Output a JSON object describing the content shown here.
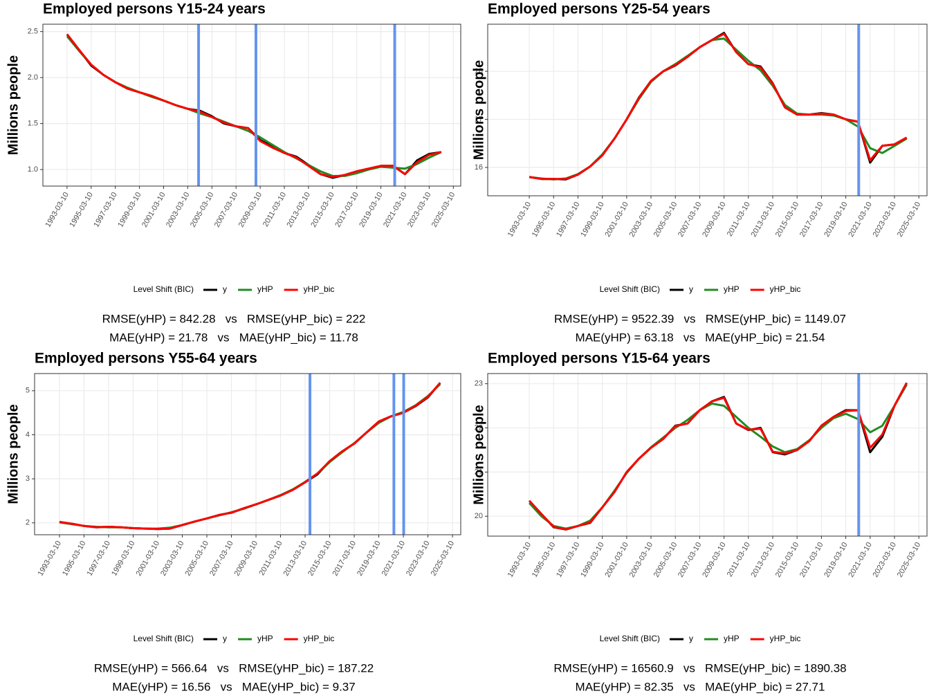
{
  "chart_data": [
    {
      "type": "line",
      "title": "Employed persons Y15-24 years",
      "y_label": "Millions people",
      "legend_title": "Level Shift (BIC)",
      "grid": true,
      "x": [
        "1993-03-10",
        "1994-03-10",
        "1995-03-10",
        "1996-03-10",
        "1997-03-10",
        "1998-03-10",
        "1999-03-10",
        "2000-03-10",
        "2001-03-10",
        "2002-03-10",
        "2003-03-10",
        "2004-03-10",
        "2005-03-10",
        "2006-03-10",
        "2007-03-10",
        "2008-03-10",
        "2009-03-10",
        "2010-03-10",
        "2011-03-10",
        "2012-03-10",
        "2013-03-10",
        "2014-03-10",
        "2015-03-10",
        "2016-03-10",
        "2017-03-10",
        "2018-03-10",
        "2019-03-10",
        "2020-03-10",
        "2021-03-10",
        "2022-03-10",
        "2023-03-10",
        "2024-03-10"
      ],
      "series": [
        {
          "name": "y",
          "color": "#000000",
          "values": [
            2.47,
            2.3,
            2.13,
            2.03,
            1.95,
            1.88,
            1.84,
            1.8,
            1.75,
            1.7,
            1.66,
            1.64,
            1.58,
            1.5,
            1.47,
            1.45,
            1.32,
            1.25,
            1.18,
            1.14,
            1.05,
            0.95,
            0.91,
            0.94,
            0.98,
            1.01,
            1.04,
            1.04,
            0.95,
            1.1,
            1.17,
            1.19
          ]
        },
        {
          "name": "yHP",
          "color": "#228b22",
          "values": [
            2.45,
            2.29,
            2.14,
            2.03,
            1.95,
            1.89,
            1.84,
            1.79,
            1.75,
            1.7,
            1.66,
            1.61,
            1.57,
            1.52,
            1.47,
            1.42,
            1.35,
            1.27,
            1.19,
            1.12,
            1.05,
            0.98,
            0.93,
            0.93,
            0.96,
            1.0,
            1.03,
            1.02,
            1.01,
            1.06,
            1.13,
            1.19
          ]
        },
        {
          "name": "yHP_bic",
          "color": "#ff0000",
          "values": [
            2.47,
            2.3,
            2.14,
            2.03,
            1.95,
            1.88,
            1.84,
            1.8,
            1.75,
            1.7,
            1.66,
            1.63,
            1.57,
            1.51,
            1.47,
            1.45,
            1.31,
            1.24,
            1.18,
            1.13,
            1.04,
            0.95,
            0.92,
            0.94,
            0.98,
            1.01,
            1.04,
            1.04,
            0.95,
            1.08,
            1.16,
            1.19
          ]
        }
      ],
      "level_shifts": [
        "2004-02-01",
        "2008-11-01",
        "2020-05-01"
      ],
      "shift_color": "#6495ed",
      "xlim": [
        "1991-03-10",
        "2025-10-20"
      ],
      "xticks": [
        "1993-03-10",
        "1995-03-10",
        "1997-03-10",
        "1999-03-10",
        "2001-03-10",
        "2003-03-10",
        "2005-03-10",
        "2007-03-10",
        "2009-03-10",
        "2011-03-10",
        "2013-03-10",
        "2015-03-10",
        "2017-03-10",
        "2019-03-10",
        "2021-03-10",
        "2023-03-10",
        "2025-03-10"
      ],
      "ylim": [
        0.82,
        2.58
      ],
      "yticks": [
        {
          "value": 1,
          "label": "1.0"
        },
        {
          "value": 1.5,
          "label": "1.5"
        },
        {
          "value": 2,
          "label": "2.0"
        },
        {
          "value": 2.5,
          "label": "2.5"
        }
      ],
      "annotations": [
        "RMSE(yHP) = 842.28   vs   RMSE(yHP_bic) = 222",
        "MAE(yHP) = 21.78   vs   MAE(yHP_bic) = 11.78"
      ]
    },
    {
      "type": "line",
      "title": "Employed persons Y25-54 years",
      "y_label": "Millions people",
      "legend_title": "Level Shift (BIC)",
      "grid": true,
      "x": [
        "1993-03-10",
        "1994-03-10",
        "1995-03-10",
        "1996-03-10",
        "1997-03-10",
        "1998-03-10",
        "1999-03-10",
        "2000-03-10",
        "2001-03-10",
        "2002-03-10",
        "2003-03-10",
        "2004-03-10",
        "2005-03-10",
        "2006-03-10",
        "2007-03-10",
        "2008-03-10",
        "2009-03-10",
        "2010-03-10",
        "2011-03-10",
        "2012-03-10",
        "2013-03-10",
        "2014-03-10",
        "2015-03-10",
        "2016-03-10",
        "2017-03-10",
        "2018-03-10",
        "2019-03-10",
        "2020-03-10",
        "2021-03-10",
        "2022-03-10",
        "2023-03-10",
        "2024-03-10"
      ],
      "series": [
        {
          "name": "y",
          "color": "#000000",
          "values": [
            15.8,
            15.76,
            15.76,
            15.75,
            15.85,
            16.02,
            16.25,
            16.6,
            17.0,
            17.45,
            17.8,
            18.0,
            18.12,
            18.3,
            18.5,
            18.65,
            18.8,
            18.4,
            18.15,
            18.1,
            17.75,
            17.25,
            17.1,
            17.1,
            17.13,
            17.1,
            17.0,
            16.95,
            16.1,
            16.45,
            16.48,
            16.62
          ]
        },
        {
          "name": "yHP",
          "color": "#228b22",
          "values": [
            15.8,
            15.77,
            15.75,
            15.77,
            15.86,
            16.02,
            16.27,
            16.6,
            17.0,
            17.42,
            17.78,
            18.0,
            18.15,
            18.32,
            18.5,
            18.65,
            18.68,
            18.45,
            18.22,
            18.02,
            17.7,
            17.3,
            17.12,
            17.1,
            17.1,
            17.08,
            17.0,
            16.85,
            16.4,
            16.3,
            16.45,
            16.6
          ]
        },
        {
          "name": "yHP_bic",
          "color": "#ff0000",
          "values": [
            15.8,
            15.76,
            15.76,
            15.76,
            15.85,
            16.02,
            16.25,
            16.6,
            17.0,
            17.44,
            17.8,
            18.0,
            18.13,
            18.3,
            18.5,
            18.65,
            18.78,
            18.4,
            18.15,
            18.08,
            17.74,
            17.25,
            17.1,
            17.1,
            17.12,
            17.1,
            17.0,
            16.95,
            16.15,
            16.45,
            16.48,
            16.62
          ]
        }
      ],
      "level_shifts": [
        "2020-04-01"
      ],
      "shift_color": "#6495ed",
      "xlim": [
        "1989-10-10",
        "2025-11-10"
      ],
      "xticks": [
        "1993-03-10",
        "1995-03-10",
        "1997-03-10",
        "1999-03-10",
        "2001-03-10",
        "2003-03-10",
        "2005-03-10",
        "2007-03-10",
        "2009-03-10",
        "2011-03-10",
        "2013-03-10",
        "2015-03-10",
        "2017-03-10",
        "2019-03-10",
        "2021-03-10",
        "2023-03-10",
        "2025-03-10"
      ],
      "ylim": [
        15.41,
        18.98
      ],
      "yticks": [
        16,
        17,
        18
      ],
      "annotations": [
        "RMSE(yHP) = 9522.39   vs   RMSE(yHP_bic) = 1149.07",
        "MAE(yHP) = 63.18   vs   MAE(yHP_bic) = 21.54"
      ]
    },
    {
      "type": "line",
      "title": "Employed persons Y55-64 years",
      "y_label": "Millions people",
      "legend_title": "Level Shift (BIC)",
      "grid": true,
      "x": [
        "1993-03-10",
        "1994-03-10",
        "1995-03-10",
        "1996-03-10",
        "1997-03-10",
        "1998-03-10",
        "1999-03-10",
        "2000-03-10",
        "2001-03-10",
        "2002-03-10",
        "2003-03-10",
        "2004-03-10",
        "2005-03-10",
        "2006-03-10",
        "2007-03-10",
        "2008-03-10",
        "2009-03-10",
        "2010-03-10",
        "2011-03-10",
        "2012-03-10",
        "2013-03-10",
        "2014-03-10",
        "2015-03-10",
        "2016-03-10",
        "2017-03-10",
        "2018-03-10",
        "2019-03-10",
        "2020-03-10",
        "2021-03-10",
        "2022-03-10",
        "2023-03-10",
        "2024-03-10"
      ],
      "series": [
        {
          "name": "y",
          "color": "#000000",
          "values": [
            2.02,
            1.98,
            1.93,
            1.9,
            1.91,
            1.9,
            1.88,
            1.87,
            1.86,
            1.87,
            1.95,
            2.03,
            2.1,
            2.18,
            2.23,
            2.33,
            2.42,
            2.52,
            2.62,
            2.75,
            2.92,
            3.1,
            3.4,
            3.62,
            3.8,
            4.05,
            4.3,
            4.42,
            4.5,
            4.65,
            4.85,
            5.18
          ]
        },
        {
          "name": "yHP",
          "color": "#228b22",
          "values": [
            2.01,
            1.97,
            1.93,
            1.91,
            1.9,
            1.9,
            1.88,
            1.87,
            1.87,
            1.89,
            1.95,
            2.03,
            2.1,
            2.17,
            2.24,
            2.32,
            2.42,
            2.52,
            2.63,
            2.76,
            2.93,
            3.12,
            3.38,
            3.6,
            3.81,
            4.05,
            4.27,
            4.42,
            4.52,
            4.67,
            4.88,
            5.15
          ]
        },
        {
          "name": "yHP_bic",
          "color": "#ff0000",
          "values": [
            2.02,
            1.98,
            1.93,
            1.9,
            1.91,
            1.9,
            1.88,
            1.87,
            1.86,
            1.87,
            1.95,
            2.03,
            2.1,
            2.18,
            2.23,
            2.33,
            2.42,
            2.52,
            2.62,
            2.75,
            2.92,
            3.12,
            3.4,
            3.62,
            3.8,
            4.05,
            4.3,
            4.42,
            4.5,
            4.66,
            4.86,
            5.18
          ]
        }
      ],
      "level_shifts": [
        "2013-08-01",
        "2020-06-01",
        "2021-03-20"
      ],
      "shift_color": "#6495ed",
      "xlim": [
        "1991-03-01",
        "2025-11-10"
      ],
      "xticks": [
        "1993-03-10",
        "1995-03-10",
        "1997-03-10",
        "1999-03-10",
        "2001-03-10",
        "2003-03-10",
        "2005-03-10",
        "2007-03-10",
        "2009-03-10",
        "2011-03-10",
        "2013-03-10",
        "2015-03-10",
        "2017-03-10",
        "2019-03-10",
        "2021-03-10",
        "2023-03-10",
        "2025-03-10"
      ],
      "ylim": [
        1.73,
        5.39
      ],
      "yticks": [
        2,
        3,
        4,
        5
      ],
      "annotations": [
        "RMSE(yHP) = 566.64   vs   RMSE(yHP_bic) = 187.22",
        "MAE(yHP) = 16.56   vs   MAE(yHP_bic) = 9.37"
      ]
    },
    {
      "type": "line",
      "title": "Employed persons Y15-64 years",
      "y_label": "Millions people",
      "legend_title": "Level Shift (BIC)",
      "grid": true,
      "x": [
        "1993-03-10",
        "1994-03-10",
        "1995-03-10",
        "1996-03-10",
        "1997-03-10",
        "1998-03-10",
        "1999-03-10",
        "2000-03-10",
        "2001-03-10",
        "2002-03-10",
        "2003-03-10",
        "2004-03-10",
        "2005-03-10",
        "2006-03-10",
        "2007-03-10",
        "2008-03-10",
        "2009-03-10",
        "2010-03-10",
        "2011-03-10",
        "2012-03-10",
        "2013-03-10",
        "2014-03-10",
        "2015-03-10",
        "2016-03-10",
        "2017-03-10",
        "2018-03-10",
        "2019-03-10",
        "2020-03-10",
        "2021-03-10",
        "2022-03-10",
        "2023-03-10",
        "2024-03-10"
      ],
      "series": [
        {
          "name": "y",
          "color": "#000000",
          "values": [
            20.35,
            20.05,
            19.75,
            19.7,
            19.78,
            19.85,
            20.2,
            20.55,
            21.0,
            21.3,
            21.55,
            21.75,
            22.05,
            22.1,
            22.4,
            22.6,
            22.7,
            22.1,
            21.95,
            22.0,
            21.45,
            21.4,
            21.5,
            21.7,
            22.05,
            22.25,
            22.4,
            22.4,
            21.45,
            21.8,
            22.5,
            23.02
          ]
        },
        {
          "name": "yHP",
          "color": "#228b22",
          "values": [
            20.3,
            20.0,
            19.78,
            19.72,
            19.78,
            19.9,
            20.2,
            20.58,
            20.98,
            21.3,
            21.56,
            21.78,
            22.0,
            22.18,
            22.4,
            22.55,
            22.5,
            22.25,
            22.0,
            21.8,
            21.58,
            21.45,
            21.52,
            21.72,
            22.0,
            22.22,
            22.32,
            22.2,
            21.9,
            22.05,
            22.5,
            22.98
          ]
        },
        {
          "name": "yHP_bic",
          "color": "#ff0000",
          "values": [
            20.35,
            20.05,
            19.76,
            19.7,
            19.78,
            19.86,
            20.2,
            20.55,
            21.0,
            21.3,
            21.55,
            21.75,
            22.04,
            22.1,
            22.4,
            22.6,
            22.68,
            22.1,
            21.96,
            21.98,
            21.46,
            21.42,
            21.5,
            21.7,
            22.05,
            22.25,
            22.38,
            22.4,
            21.55,
            21.85,
            22.5,
            23.02
          ]
        }
      ],
      "level_shifts": [
        "2020-04-01"
      ],
      "shift_color": "#6495ed",
      "xlim": [
        "1989-10-10",
        "2025-11-10"
      ],
      "xticks": [
        "1993-03-10",
        "1995-03-10",
        "1997-03-10",
        "1999-03-10",
        "2001-03-10",
        "2003-03-10",
        "2005-03-10",
        "2007-03-10",
        "2009-03-10",
        "2011-03-10",
        "2013-03-10",
        "2015-03-10",
        "2017-03-10",
        "2019-03-10",
        "2021-03-10",
        "2023-03-10",
        "2025-03-10"
      ],
      "ylim": [
        19.55,
        23.23
      ],
      "yticks": [
        20,
        21,
        22,
        23
      ],
      "annotations": [
        "RMSE(yHP) = 16560.9   vs   RMSE(yHP_bic) = 1890.38",
        "MAE(yHP) = 82.35   vs   MAE(yHP_bic) = 27.71"
      ]
    }
  ]
}
